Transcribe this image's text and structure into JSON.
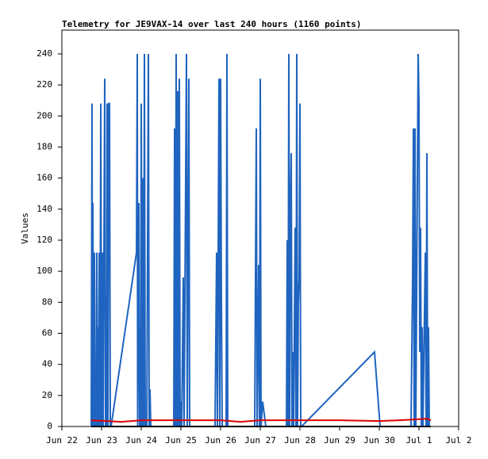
{
  "chart_data": {
    "type": "line",
    "title": "Telemetry for JE9VAX-14 over last 240 hours (1160 points)",
    "y_label": "Values",
    "xlim": [
      0,
      10
    ],
    "xticks": [
      {
        "value": 0,
        "label": "Jun 22"
      },
      {
        "value": 1,
        "label": "Jun 23"
      },
      {
        "value": 2,
        "label": "Jun 24"
      },
      {
        "value": 3,
        "label": "Jun 25"
      },
      {
        "value": 4,
        "label": "Jun 26"
      },
      {
        "value": 5,
        "label": "Jun 27"
      },
      {
        "value": 6,
        "label": "Jun 28"
      },
      {
        "value": 7,
        "label": "Jun 29"
      },
      {
        "value": 8,
        "label": "Jun 30"
      },
      {
        "value": 9,
        "label": "Jul 1"
      },
      {
        "value": 10,
        "label": "Jul 2"
      }
    ],
    "ylim": [
      0,
      255.3
    ],
    "yticks": [
      0,
      20,
      40,
      60,
      80,
      100,
      120,
      140,
      160,
      180,
      200,
      220,
      240
    ],
    "grid": false,
    "series": [
      {
        "color": "#1f64c0",
        "x": [
          0.74,
          0.76,
          0.77,
          0.78,
          0.8,
          0.82,
          0.83,
          0.84,
          0.86,
          0.88,
          0.89,
          0.9,
          0.92,
          0.94,
          0.96,
          0.98,
          1.0,
          1.02,
          1.04,
          1.08,
          1.1,
          1.12,
          1.13,
          1.14,
          1.16,
          1.18,
          1.2,
          1.22,
          1.24,
          1.88,
          1.9,
          1.91,
          1.94,
          1.96,
          1.98,
          1.99,
          2.0,
          2.02,
          2.04,
          2.06,
          2.08,
          2.1,
          2.14,
          2.18,
          2.2,
          2.22,
          2.24,
          2.82,
          2.84,
          2.86,
          2.88,
          2.9,
          2.92,
          2.94,
          2.96,
          2.98,
          3.0,
          3.02,
          3.06,
          3.08,
          3.14,
          3.16,
          3.2,
          3.22,
          3.86,
          3.9,
          3.92,
          3.96,
          3.98,
          4.0,
          4.02,
          4.04,
          4.14,
          4.16,
          4.18,
          4.86,
          4.9,
          4.92,
          4.96,
          4.98,
          5.0,
          5.02,
          5.06,
          5.1,
          5.14,
          5.66,
          5.68,
          5.7,
          5.72,
          5.74,
          5.76,
          5.78,
          5.8,
          5.82,
          5.84,
          5.88,
          5.9,
          5.92,
          5.94,
          5.96,
          5.98,
          6.0,
          6.02,
          6.04,
          7.88,
          8.02,
          8.8,
          8.84,
          8.86,
          8.88,
          8.9,
          8.92,
          8.98,
          9.0,
          9.02,
          9.04,
          9.06,
          9.08,
          9.1,
          9.16,
          9.18,
          9.2,
          9.22,
          9.24,
          9.26
        ],
        "values": [
          0,
          208,
          0,
          144,
          0,
          112,
          0,
          32,
          0,
          112,
          0,
          64,
          0,
          112,
          0,
          208,
          0,
          112,
          0,
          224,
          0,
          84,
          0,
          208,
          0,
          208,
          208,
          0,
          0,
          112,
          240,
          0,
          144,
          0,
          64,
          0,
          208,
          0,
          160,
          0,
          240,
          0,
          0,
          240,
          0,
          24,
          0,
          0,
          192,
          0,
          240,
          0,
          216,
          0,
          224,
          0,
          16,
          0,
          96,
          0,
          240,
          0,
          224,
          0,
          0,
          112,
          0,
          224,
          0,
          224,
          80,
          0,
          0,
          240,
          0,
          0,
          192,
          0,
          104,
          0,
          224,
          0,
          16,
          8,
          0,
          0,
          120,
          0,
          240,
          0,
          144,
          176,
          0,
          48,
          0,
          128,
          0,
          240,
          0,
          80,
          96,
          208,
          0,
          0,
          48,
          0,
          0,
          96,
          192,
          0,
          192,
          0,
          240,
          208,
          48,
          128,
          0,
          64,
          0,
          112,
          0,
          176,
          0,
          64,
          0
        ]
      },
      {
        "color": "#000000",
        "x": [
          0.74,
          9.3
        ],
        "values": [
          0,
          0
        ]
      },
      {
        "color": "#e00000",
        "x": [
          0.74,
          1.5,
          2.0,
          3.0,
          4.0,
          4.5,
          5.0,
          6.0,
          7.0,
          8.0,
          8.5,
          9.2,
          9.3
        ],
        "values": [
          4,
          3,
          4,
          4,
          4,
          3,
          4,
          4,
          4,
          3.5,
          4,
          5,
          4
        ]
      }
    ]
  }
}
